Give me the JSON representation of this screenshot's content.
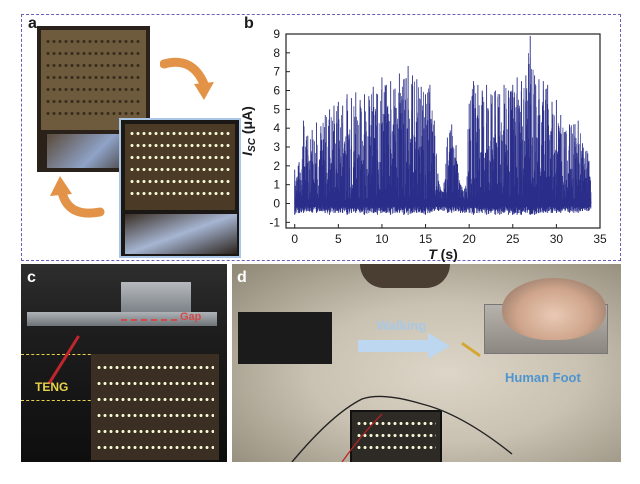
{
  "panels": {
    "a": {
      "letter": "a"
    },
    "b": {
      "letter": "b"
    },
    "c": {
      "letter": "c",
      "gap_label": "Gap",
      "teng_label": "TENG"
    },
    "d": {
      "letter": "d",
      "walking_label": "Walking",
      "human_foot_label": "Human Foot"
    }
  },
  "colors": {
    "frame": "#6a5fb5",
    "series": "#2b2f8a",
    "arrow_orange": "#e39347",
    "walking_text": "#a9c8e6",
    "walking_arrow": "#bcd7ef",
    "foot_text": "#4e95cf",
    "gap_text": "#d24a4a",
    "teng_text": "#e8d34a"
  },
  "chart_data": {
    "type": "line",
    "title": "",
    "xlabel_main": "T",
    "xlabel_unit": " (s)",
    "ylabel_main": "I",
    "ylabel_sub": "SC",
    "ylabel_unit": " (μA)",
    "xlim": [
      -1,
      35
    ],
    "ylim": [
      -1.3,
      9
    ],
    "xticks": [
      0,
      5,
      10,
      15,
      20,
      25,
      30,
      35
    ],
    "yticks": [
      -1,
      0,
      1,
      2,
      3,
      4,
      5,
      6,
      7,
      8,
      9
    ],
    "grid": false,
    "series": [
      {
        "x": [
          0,
          0.5,
          1,
          1.5,
          2,
          2.5,
          3,
          3.5,
          4,
          4.5,
          5,
          5.5,
          6,
          6.5,
          7,
          7.5,
          8,
          8.5,
          9,
          9.5,
          10,
          10.5,
          11,
          11.5,
          12,
          12.5,
          13,
          13.5,
          14,
          14.5,
          15,
          15.5,
          16,
          16.5,
          17,
          17.5,
          18,
          18.5,
          19,
          19.5,
          20,
          20.5,
          21,
          21.5,
          22,
          22.5,
          23,
          23.5,
          24,
          24.5,
          25,
          25.5,
          26,
          26.5,
          27,
          27.5,
          28,
          28.5,
          29,
          29.5,
          30,
          30.5,
          31,
          31.5,
          32,
          32.5,
          33,
          33.5,
          34
        ],
        "y_max": [
          1.8,
          2.2,
          4.4,
          3.6,
          3.9,
          4.3,
          4.1,
          4.7,
          5.0,
          5.2,
          5.4,
          5.2,
          5.8,
          5.6,
          5.9,
          5.5,
          5.8,
          5.7,
          6.2,
          5.8,
          6.7,
          6.3,
          6.5,
          6.1,
          6.9,
          6.6,
          7.3,
          6.8,
          6.6,
          6.2,
          5.8,
          6.3,
          4.4,
          1.2,
          0.6,
          3.5,
          4.2,
          3.1,
          1.0,
          0.8,
          5.3,
          6.5,
          6.3,
          6.0,
          6.3,
          5.8,
          6.0,
          5.8,
          6.3,
          6.0,
          6.3,
          6.7,
          6.5,
          6.8,
          8.9,
          6.8,
          6.6,
          6.5,
          6.3,
          5.4,
          5.5,
          4.7,
          3.8,
          4.2,
          4.2,
          4.4,
          3.2,
          2.8,
          2.5
        ],
        "y_min": [
          -0.6,
          -0.5,
          -0.5,
          -0.4,
          -0.5,
          -0.5,
          -0.4,
          -0.5,
          -0.6,
          -0.5,
          -0.5,
          -0.5,
          -0.6,
          -0.5,
          -0.5,
          -0.5,
          -0.6,
          -0.5,
          -0.5,
          -0.6,
          -0.5,
          -0.5,
          -0.6,
          -0.5,
          -0.5,
          -0.6,
          -0.6,
          -0.5,
          -0.5,
          -0.5,
          -0.6,
          -0.5,
          -0.4,
          -0.4,
          -0.4,
          -0.5,
          -0.5,
          -0.4,
          -0.5,
          -0.5,
          -0.5,
          -0.6,
          -0.5,
          -0.5,
          -0.6,
          -0.5,
          -0.6,
          -0.6,
          -0.5,
          -0.6,
          -0.6,
          -0.6,
          -0.6,
          -0.5,
          -0.6,
          -0.6,
          -0.5,
          -0.5,
          -0.5,
          -0.5,
          -0.5,
          -0.5,
          -0.4,
          -0.5,
          -0.5,
          -0.5,
          -0.4,
          -0.4,
          -0.4
        ]
      }
    ]
  }
}
